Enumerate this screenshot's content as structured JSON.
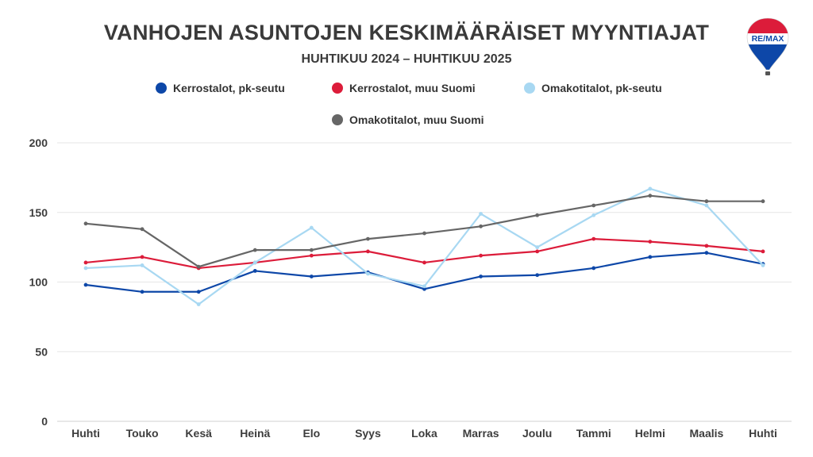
{
  "title": "VANHOJEN ASUNTOJEN KESKIMÄÄRÄISET MYYNTIAJAT",
  "subtitle": "HUHTIKUU 2024 – HUHTIKUU 2025",
  "logo": {
    "text": "RE/MAX",
    "icon": "remax-balloon-logo"
  },
  "chart_data": {
    "type": "line",
    "title": "VANHOJEN ASUNTOJEN KESKIMÄÄRÄISET MYYNTIAJAT",
    "subtitle": "HUHTIKUU 2024 – HUHTIKUU 2025",
    "categories": [
      "Huhti",
      "Touko",
      "Kesä",
      "Heinä",
      "Elo",
      "Syys",
      "Loka",
      "Marras",
      "Joulu",
      "Tammi",
      "Helmi",
      "Maalis",
      "Huhti"
    ],
    "ylim": [
      0,
      200
    ],
    "yticks": [
      0,
      50,
      100,
      150,
      200
    ],
    "grid": true,
    "legend_position": "top",
    "series": [
      {
        "name": "Kerrostalot, pk-seutu",
        "color": "#0d47a8",
        "values": [
          98,
          93,
          93,
          108,
          104,
          107,
          95,
          104,
          105,
          110,
          118,
          121,
          113
        ]
      },
      {
        "name": "Kerrostalot, muu Suomi",
        "color": "#dc1c3a",
        "values": [
          114,
          118,
          110,
          114,
          119,
          122,
          114,
          119,
          122,
          131,
          129,
          126,
          122
        ]
      },
      {
        "name": "Omakotitalot, pk-seutu",
        "color": "#a8d8f2",
        "values": [
          110,
          112,
          84,
          114,
          139,
          106,
          97,
          149,
          125,
          148,
          167,
          155,
          112
        ]
      },
      {
        "name": "Omakotitalot, muu Suomi",
        "color": "#666666",
        "values": [
          142,
          138,
          111,
          123,
          123,
          131,
          135,
          140,
          148,
          155,
          162,
          158,
          158
        ]
      }
    ]
  }
}
